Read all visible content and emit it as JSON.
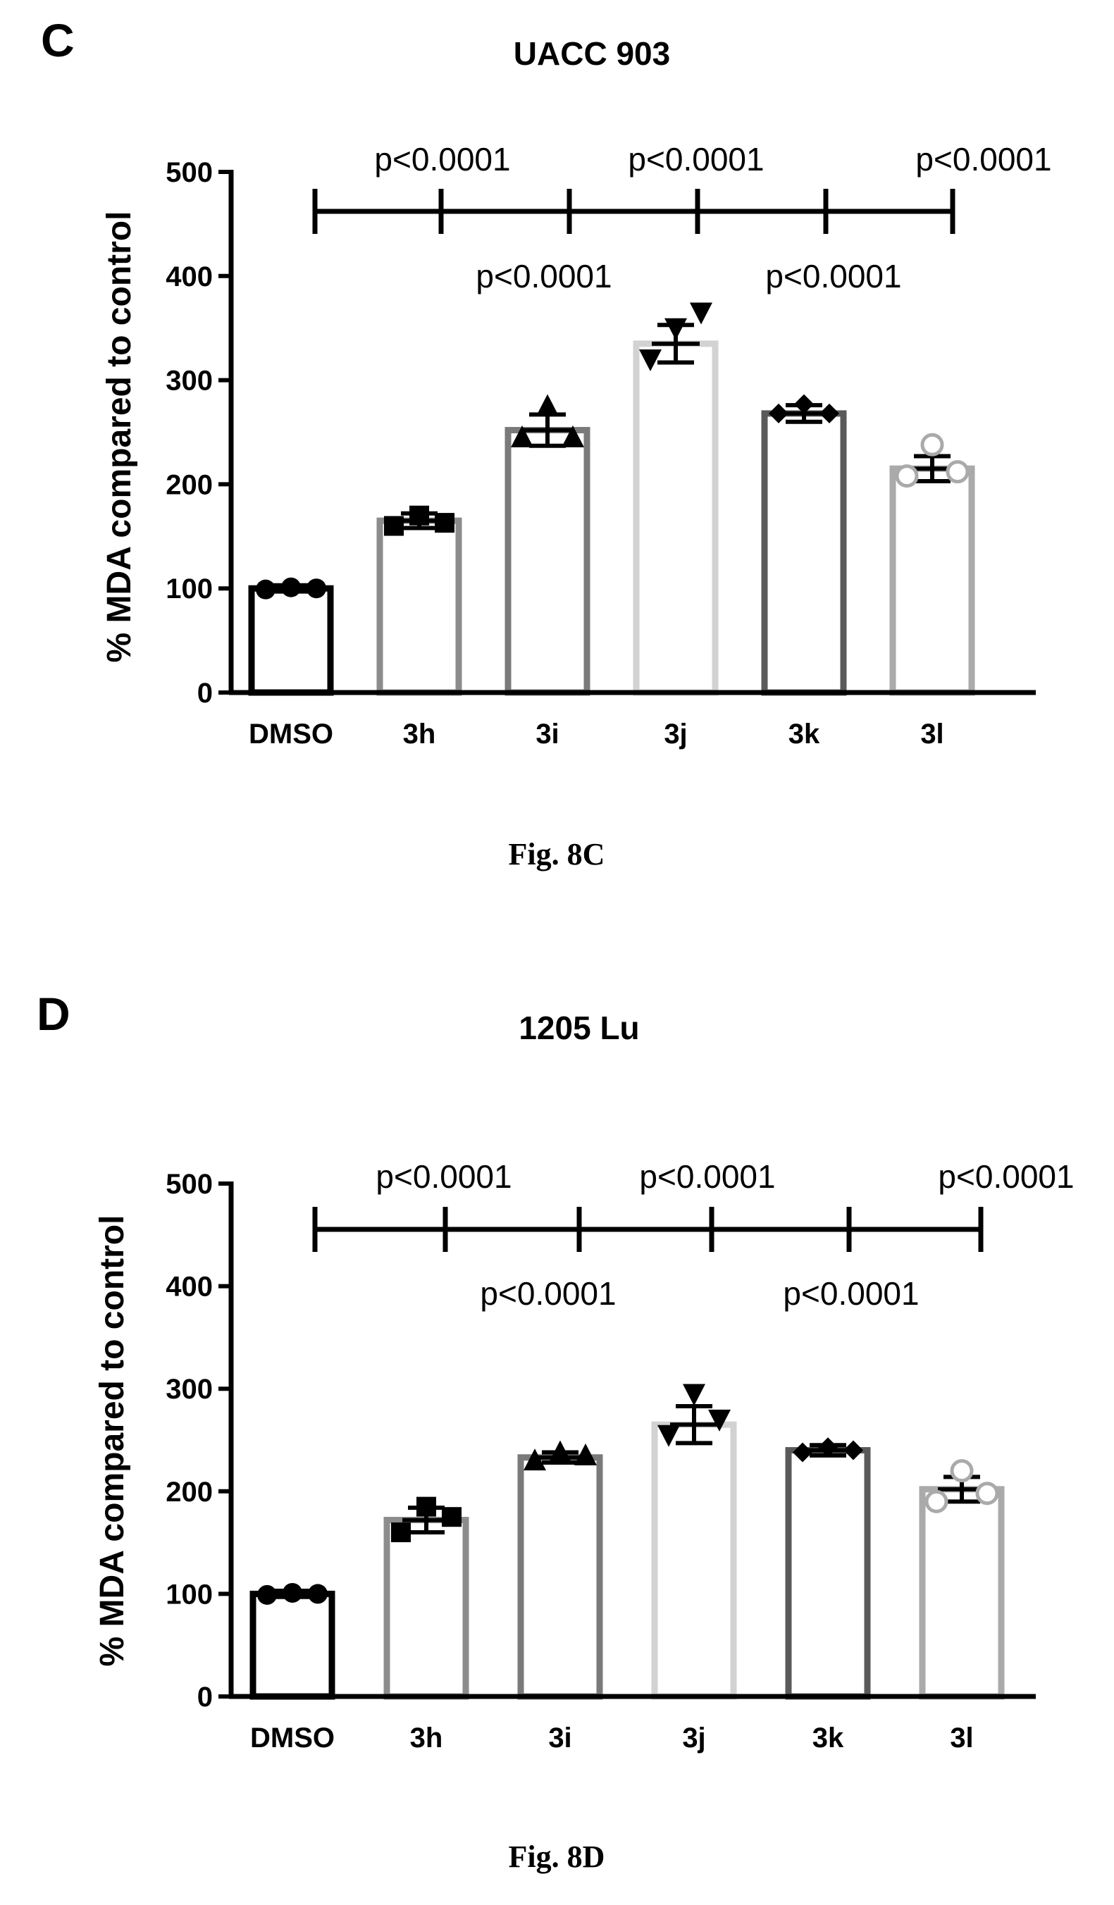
{
  "chart_data": [
    {
      "type": "bar",
      "panel": "C",
      "title": "UACC 903",
      "ylabel": "% MDA compared to control",
      "xlabel": "",
      "ylim": [
        0,
        500
      ],
      "yticks": [
        0,
        100,
        200,
        300,
        400,
        500
      ],
      "categories": [
        "DMSO",
        "3h",
        "3i",
        "3j",
        "3k",
        "3l"
      ],
      "values": [
        100,
        165,
        252,
        335,
        268,
        215
      ],
      "errors": [
        3,
        7,
        15,
        18,
        8,
        12
      ],
      "points": [
        [
          99,
          101,
          100
        ],
        [
          160,
          170,
          163
        ],
        [
          245,
          275,
          245
        ],
        [
          320,
          350,
          365
        ],
        [
          268,
          277,
          268
        ],
        [
          208,
          238,
          212
        ]
      ],
      "markers": [
        "circle",
        "square",
        "triangle-up",
        "triangle-down",
        "diamond",
        "circle-open"
      ],
      "bar_edge_colors": [
        "#000000",
        "#8c8c8c",
        "#7a7a7a",
        "#d2d2d2",
        "#5a5a5a",
        "#aaaaaa"
      ],
      "comparisons": {
        "labels_top": [
          "p<0.0001",
          "p<0.0001",
          "p<0.0001"
        ],
        "labels_bottom": [
          "p<0.0001",
          "p<0.0001"
        ]
      },
      "caption": "Fig. 8C"
    },
    {
      "type": "bar",
      "panel": "D",
      "title": "1205 Lu",
      "ylabel": "% MDA compared to control",
      "xlabel": "",
      "ylim": [
        0,
        500
      ],
      "yticks": [
        0,
        100,
        200,
        300,
        400,
        500
      ],
      "categories": [
        "DMSO",
        "3h",
        "3i",
        "3j",
        "3k",
        "3l"
      ],
      "values": [
        100,
        172,
        233,
        265,
        240,
        202
      ],
      "errors": [
        3,
        12,
        5,
        18,
        5,
        12
      ],
      "points": [
        [
          99,
          101,
          100
        ],
        [
          160,
          185,
          175
        ],
        [
          230,
          238,
          235
        ],
        [
          255,
          295,
          270
        ],
        [
          238,
          243,
          240
        ],
        [
          190,
          220,
          198
        ]
      ],
      "markers": [
        "circle",
        "square",
        "triangle-up",
        "triangle-down",
        "diamond",
        "circle-open"
      ],
      "bar_edge_colors": [
        "#000000",
        "#8c8c8c",
        "#7a7a7a",
        "#d2d2d2",
        "#5a5a5a",
        "#aaaaaa"
      ],
      "comparisons": {
        "labels_top": [
          "p<0.0001",
          "p<0.0001",
          "p<0.0001"
        ],
        "labels_bottom": [
          "p<0.0001",
          "p<0.0001"
        ]
      },
      "caption": "Fig. 8D"
    }
  ]
}
